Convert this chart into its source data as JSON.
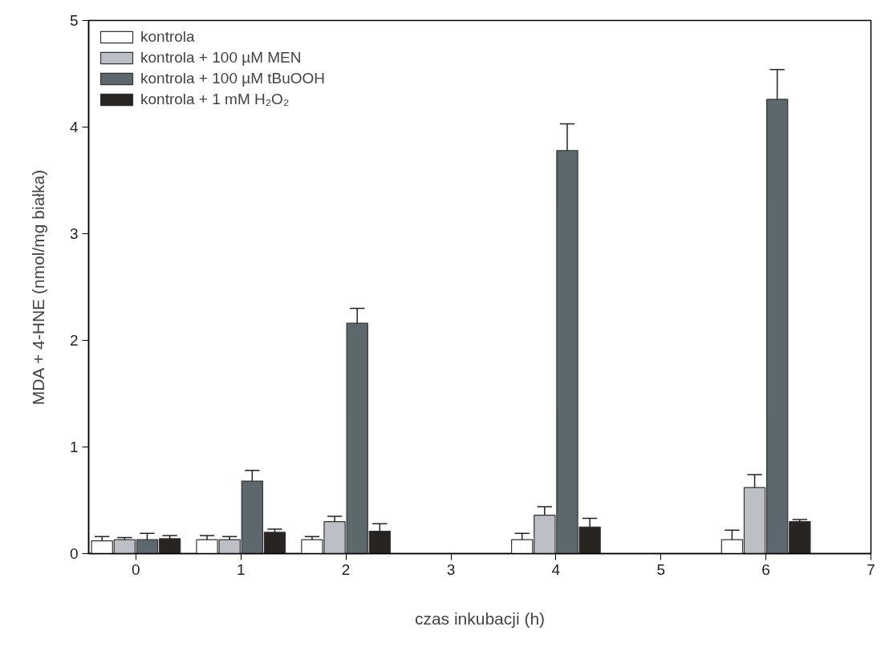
{
  "chart_data": {
    "type": "bar",
    "xlabel": "czas inkubacji (h)",
    "ylabel": "MDA + 4-HNE (nmol/mg białka)",
    "x": [
      0,
      1,
      2,
      4,
      6
    ],
    "series": [
      {
        "name": "kontrola",
        "color": "#ffffff",
        "values": [
          0.12,
          0.13,
          0.13,
          0.13,
          0.13
        ],
        "errors": [
          [
            0.12,
            0.16
          ],
          [
            0.13,
            0.17
          ],
          [
            0.13,
            0.16
          ],
          [
            0.13,
            0.19
          ],
          [
            0.13,
            0.22
          ]
        ]
      },
      {
        "name": "kontrola + 100 µM MEN",
        "color": "#bcbfc6",
        "values": [
          0.13,
          0.13,
          0.3,
          0.36,
          0.62
        ],
        "errors": [
          [
            0.13,
            0.15
          ],
          [
            0.13,
            0.16
          ],
          [
            0.3,
            0.35
          ],
          [
            0.36,
            0.44
          ],
          [
            0.62,
            0.74
          ]
        ]
      },
      {
        "name": "kontrola + 100 µM tBuOOH",
        "color": "#5c676e",
        "values": [
          0.13,
          0.68,
          2.16,
          3.78,
          4.26
        ],
        "errors": [
          [
            0.13,
            0.19
          ],
          [
            0.68,
            0.78
          ],
          [
            2.16,
            2.3
          ],
          [
            3.78,
            4.03
          ],
          [
            4.26,
            4.54
          ]
        ]
      },
      {
        "name": "kontrola + 1 mM H₂O₂",
        "color": "#272422",
        "values": [
          0.14,
          0.2,
          0.21,
          0.25,
          0.3
        ],
        "errors": [
          [
            0.14,
            0.17
          ],
          [
            0.2,
            0.23
          ],
          [
            0.21,
            0.28
          ],
          [
            0.25,
            0.33
          ],
          [
            0.3,
            0.32
          ]
        ]
      }
    ],
    "xlim": [
      -0.45,
      7
    ],
    "xticks": [
      0,
      1,
      2,
      3,
      4,
      5,
      6,
      7
    ],
    "ylim": [
      0,
      5
    ],
    "yticks": [
      0,
      1,
      2,
      3,
      4,
      5
    ],
    "grid": false,
    "legend": "top left"
  }
}
